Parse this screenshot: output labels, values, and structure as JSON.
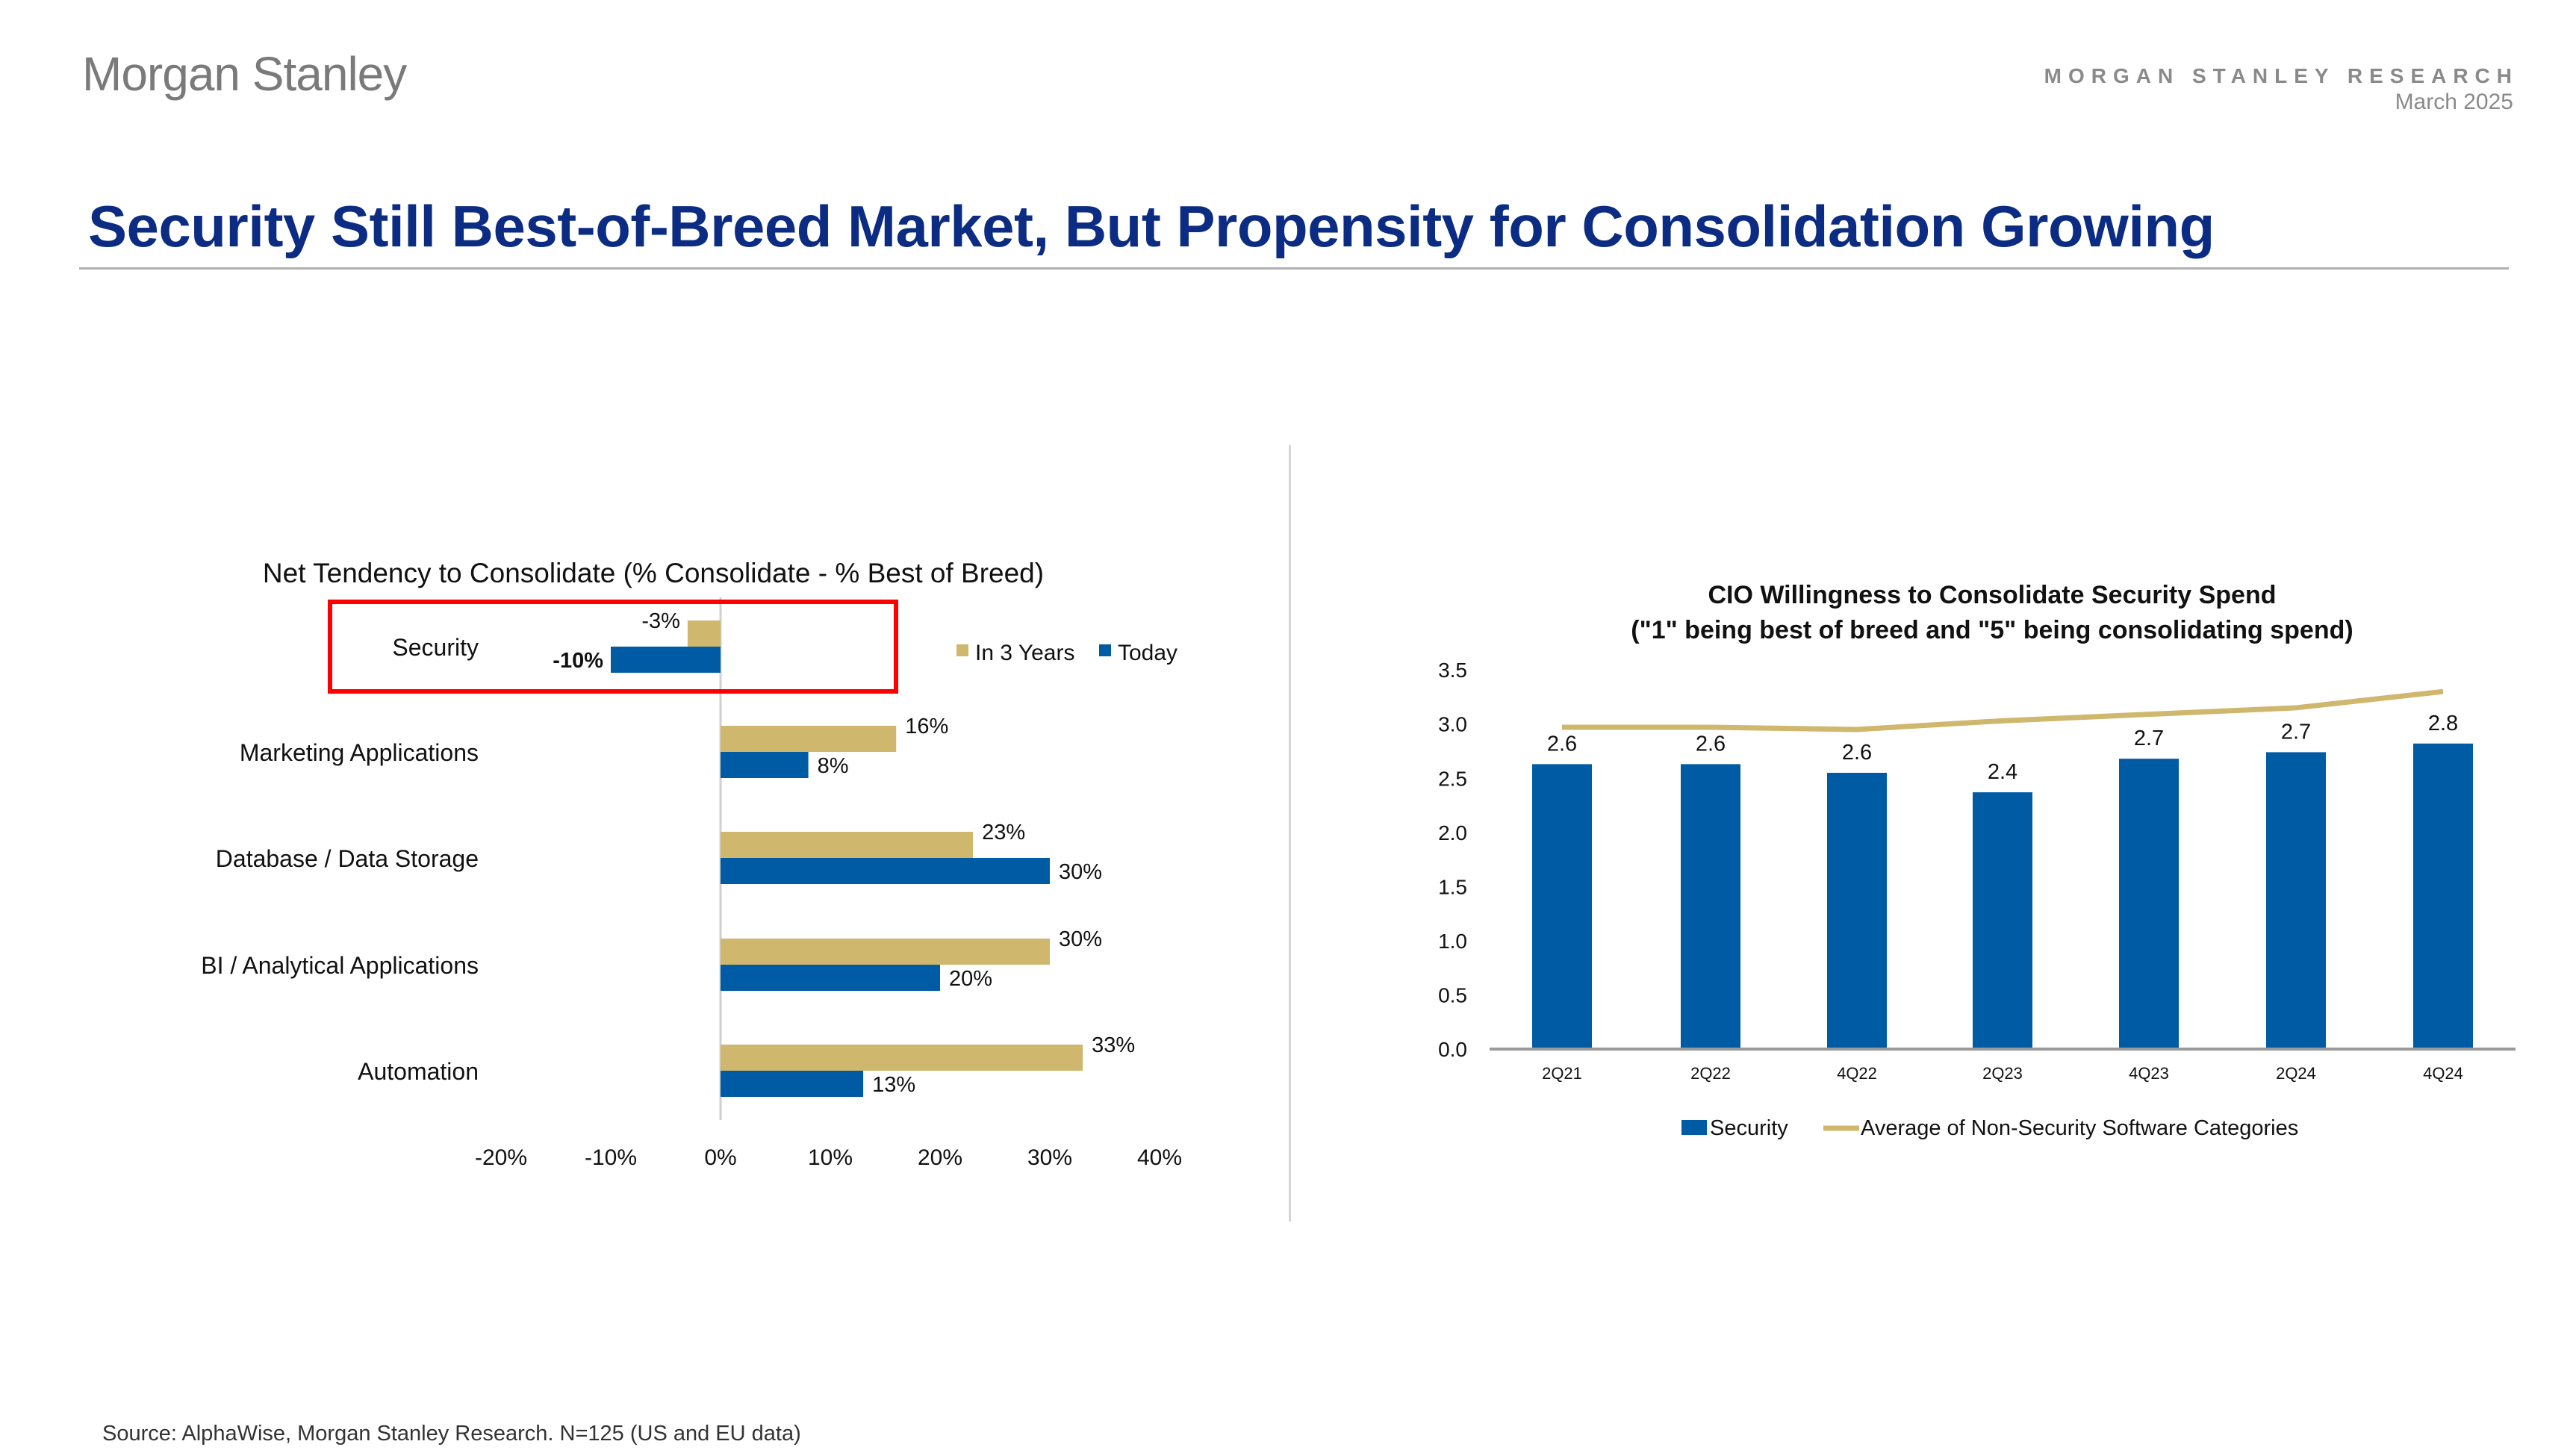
{
  "header": {
    "logo": "Morgan Stanley",
    "research_label": "MORGAN STANLEY RESEARCH",
    "date": "March 2025"
  },
  "title": "Security Still Best-of-Breed Market, But Propensity for Consolidation Growing",
  "source": "Source: AlphaWise, Morgan Stanley Research. N=125 (US and EU data)",
  "colors": {
    "gold": "#CFB76E",
    "blue": "#005BA5",
    "title": "#0B2C82",
    "highlight": "#FF0000"
  },
  "chart_data": [
    {
      "type": "bar",
      "orientation": "horizontal",
      "title": "Net Tendency to Consolidate (% Consolidate - % Best of Breed)",
      "categories": [
        "Security",
        "Marketing Applications",
        "Database / Data Storage",
        "BI / Analytical Applications",
        "Automation"
      ],
      "series": [
        {
          "name": "In 3 Years",
          "values": [
            -3,
            16,
            23,
            30,
            33
          ],
          "labels": [
            "-3%",
            "16%",
            "23%",
            "30%",
            "33%"
          ]
        },
        {
          "name": "Today",
          "values": [
            -10,
            8,
            30,
            20,
            13
          ],
          "labels": [
            "-10%",
            "8%",
            "30%",
            "20%",
            "13%"
          ]
        }
      ],
      "xlim": [
        -20,
        40
      ],
      "xticks": [
        "-20%",
        "-10%",
        "0%",
        "10%",
        "20%",
        "30%",
        "40%"
      ],
      "legend": "top-right",
      "highlighted_category": "Security"
    },
    {
      "type": "bar+line",
      "title": "CIO Willingness to Consolidate Security Spend",
      "subtitle": "(\"1\" being best of breed and \"5\"  being consolidating spend)",
      "categories": [
        "2Q21",
        "2Q22",
        "4Q22",
        "2Q23",
        "4Q23",
        "2Q24",
        "4Q24"
      ],
      "series": [
        {
          "name": "Security",
          "type": "bar",
          "values": [
            2.63,
            2.63,
            2.55,
            2.37,
            2.68,
            2.74,
            2.82
          ],
          "labels": [
            "2.6",
            "2.6",
            "2.6",
            "2.4",
            "2.7",
            "2.7",
            "2.8"
          ]
        },
        {
          "name": "Average of Non-Security Software Categories",
          "type": "line",
          "values": [
            2.97,
            2.97,
            2.95,
            3.03,
            3.09,
            3.15,
            3.3
          ]
        }
      ],
      "ylim": [
        0,
        3.5
      ],
      "yticks": [
        "0.0",
        "0.5",
        "1.0",
        "1.5",
        "2.0",
        "2.5",
        "3.0",
        "3.5"
      ],
      "legend": "bottom"
    }
  ]
}
